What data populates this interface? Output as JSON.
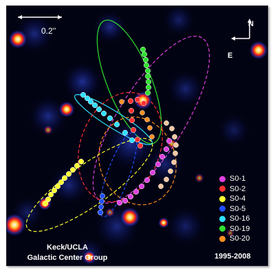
{
  "scale_bar": {
    "label": "0.2''"
  },
  "compass": {
    "north": "N",
    "east": "E"
  },
  "legend": [
    {
      "label": "S0-1",
      "color": "#e040e0"
    },
    {
      "label": "S0-2",
      "color": "#ff3030"
    },
    {
      "label": "S0-4",
      "color": "#ffff30"
    },
    {
      "label": "S0-5",
      "color": "#2050ff"
    },
    {
      "label": "S0-16",
      "color": "#30e0ff"
    },
    {
      "label": "S0-19",
      "color": "#30e030"
    },
    {
      "label": "S0-20",
      "color": "#ff9020"
    }
  ],
  "credit": {
    "line1": "Keck/UCLA",
    "line2": "Galactic Center Group"
  },
  "date_range": "1995-2008"
}
